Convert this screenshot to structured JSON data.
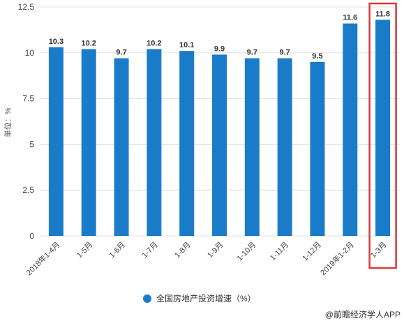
{
  "chart_data": {
    "type": "bar",
    "categories": [
      "2018年1-4月",
      "1-5月",
      "1-6月",
      "1-7月",
      "1-8月",
      "1-9月",
      "1-10月",
      "1-11月",
      "1-12月",
      "2019年1-2月",
      "1-3月"
    ],
    "values": [
      10.3,
      10.2,
      9.7,
      10.2,
      10.1,
      9.9,
      9.7,
      9.7,
      9.5,
      11.6,
      11.8
    ],
    "ylabel": "单位：%",
    "ylim": [
      0,
      12.5
    ],
    "yticks": [
      "0",
      "2.5",
      "5",
      "7.5",
      "10",
      "12.5"
    ],
    "grid": true,
    "legend": {
      "position": "bottom",
      "series_name": "全国房地产投资增速（%）"
    },
    "highlight_category": "1-3月",
    "colors": {
      "bar": "#1a7cc9",
      "highlight_box": "#d9393b",
      "grid": "#e3e3e3"
    }
  },
  "source_text": "@前瞻经济学人APP"
}
